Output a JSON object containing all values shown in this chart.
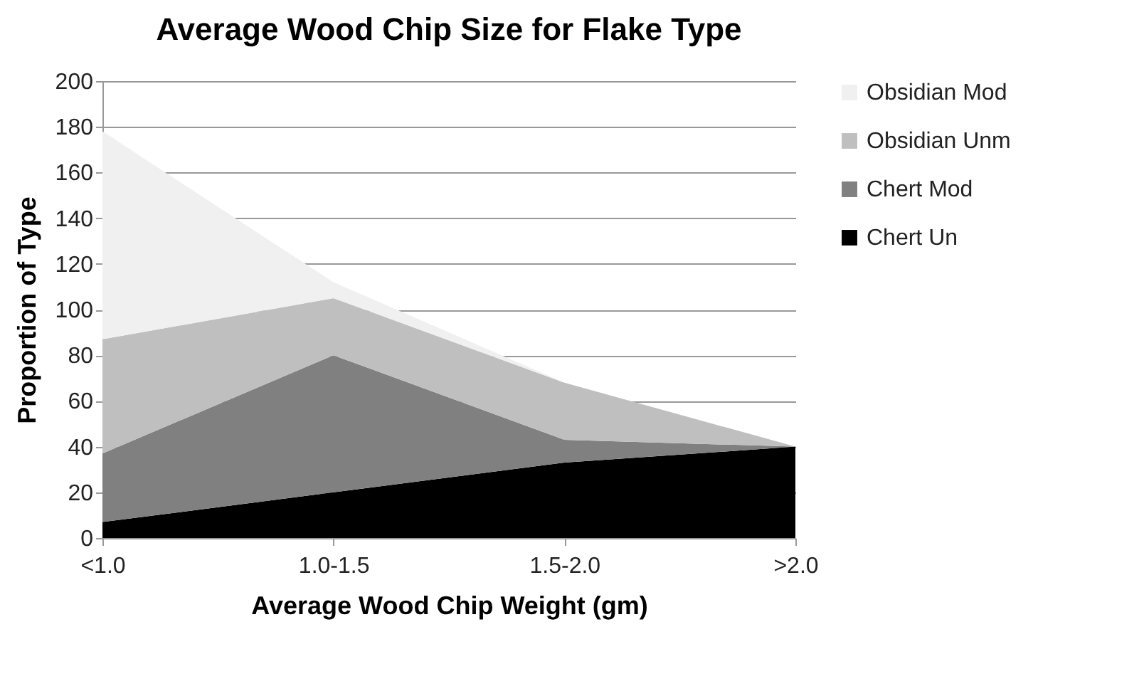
{
  "chart_data": {
    "type": "area",
    "title": "Average Wood Chip Size for Flake Type",
    "xlabel": "Average Wood Chip Weight (gm)",
    "ylabel": "Proportion of Type",
    "categories": [
      "<1.0",
      "1.0-1.5",
      "1.5-2.0",
      ">2.0"
    ],
    "stacked": true,
    "series": [
      {
        "name": "Chert Un",
        "color": "#000000",
        "values": [
          7,
          20,
          33,
          40
        ]
      },
      {
        "name": "Chert Mod",
        "color": "#808080",
        "values": [
          30,
          60,
          10,
          0
        ]
      },
      {
        "name": "Obsidian Unm",
        "color": "#bfbfbf",
        "values": [
          50,
          25,
          25,
          0
        ]
      },
      {
        "name": "Obsidian Mod",
        "color": "#f0f0f0",
        "values": [
          91,
          7,
          0,
          0
        ]
      }
    ],
    "ylim": [
      0,
      200
    ],
    "yticks": [
      0,
      20,
      40,
      60,
      80,
      100,
      120,
      140,
      160,
      180,
      200
    ],
    "grid": "y",
    "legend": "right"
  }
}
